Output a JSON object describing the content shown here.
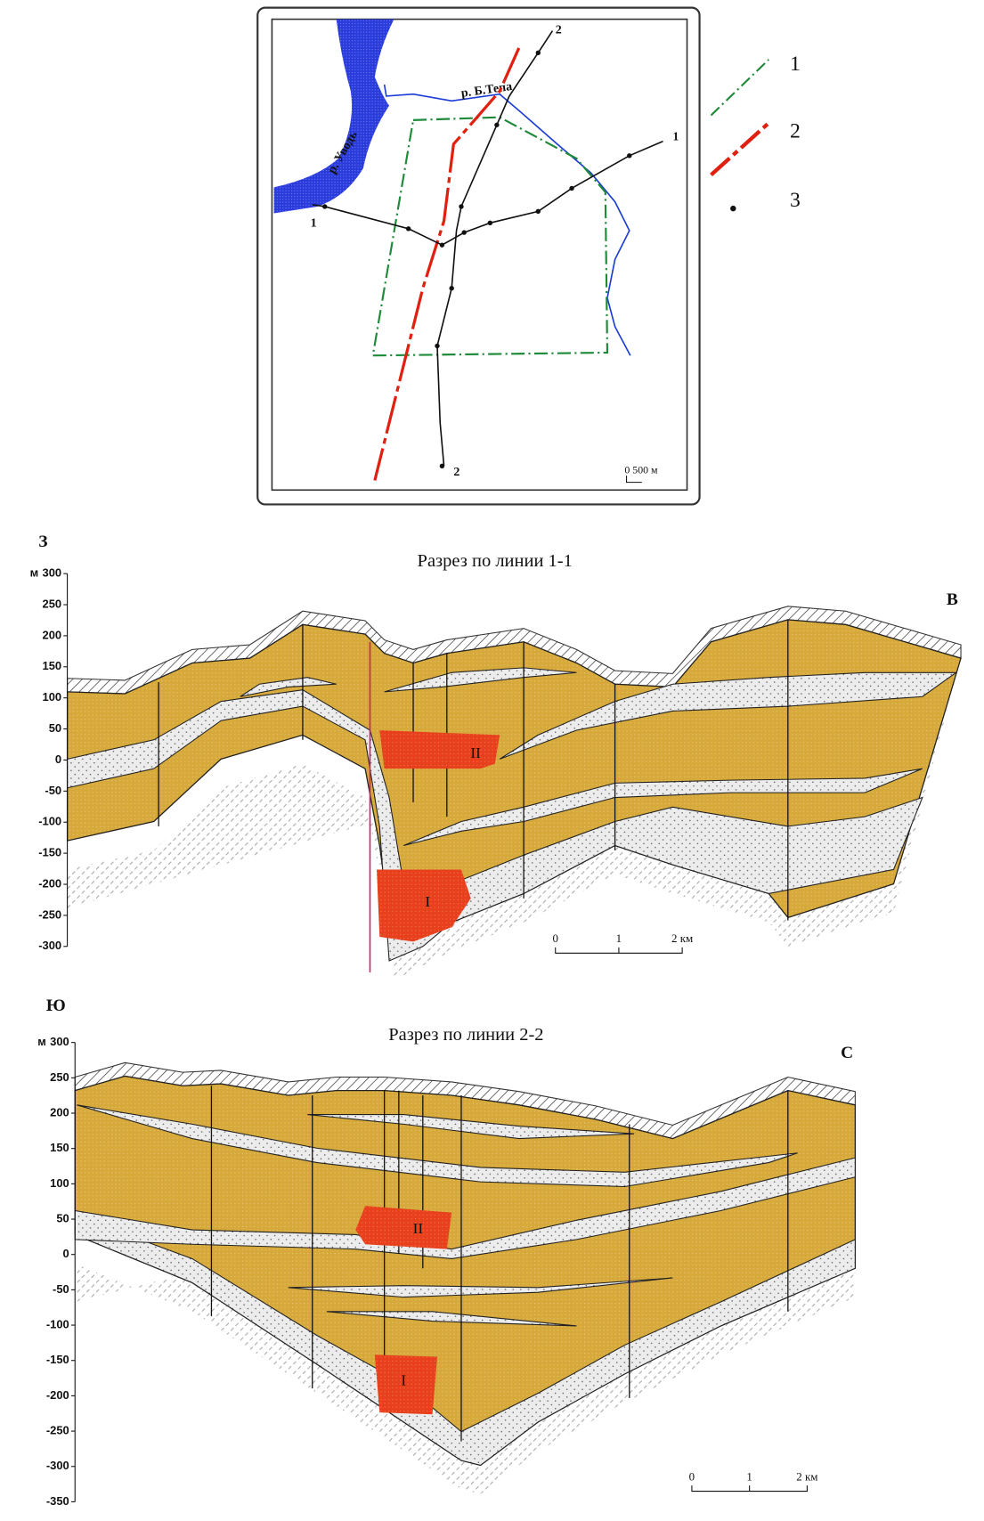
{
  "map": {
    "profile_ends": [
      "1",
      "1",
      "2",
      "2"
    ],
    "rivers": [
      "р. Уводь",
      "р. Б.Тепа"
    ],
    "scale": "0 500 м"
  },
  "legend": [
    "1",
    "2",
    "3"
  ],
  "sections": [
    {
      "side_left": "З",
      "title": "Разрез по линии 1-1",
      "side_right": "В",
      "axis_unit": "м",
      "yticks": [
        300,
        250,
        200,
        150,
        100,
        50,
        0,
        -50,
        -100,
        -150,
        -200,
        -250,
        -300
      ],
      "zones": [
        "II",
        "I"
      ],
      "scale": [
        "0",
        "1",
        "2 км"
      ]
    },
    {
      "side_left": "Ю",
      "title": "Разрез по линии 2-2",
      "side_right": "С",
      "axis_unit": "м",
      "yticks": [
        300,
        250,
        200,
        150,
        100,
        50,
        0,
        -50,
        -100,
        -150,
        -200,
        -250,
        -300,
        -350
      ],
      "zones": [
        "II",
        "I"
      ],
      "scale": [
        "0",
        "1",
        "2 км"
      ]
    }
  ]
}
